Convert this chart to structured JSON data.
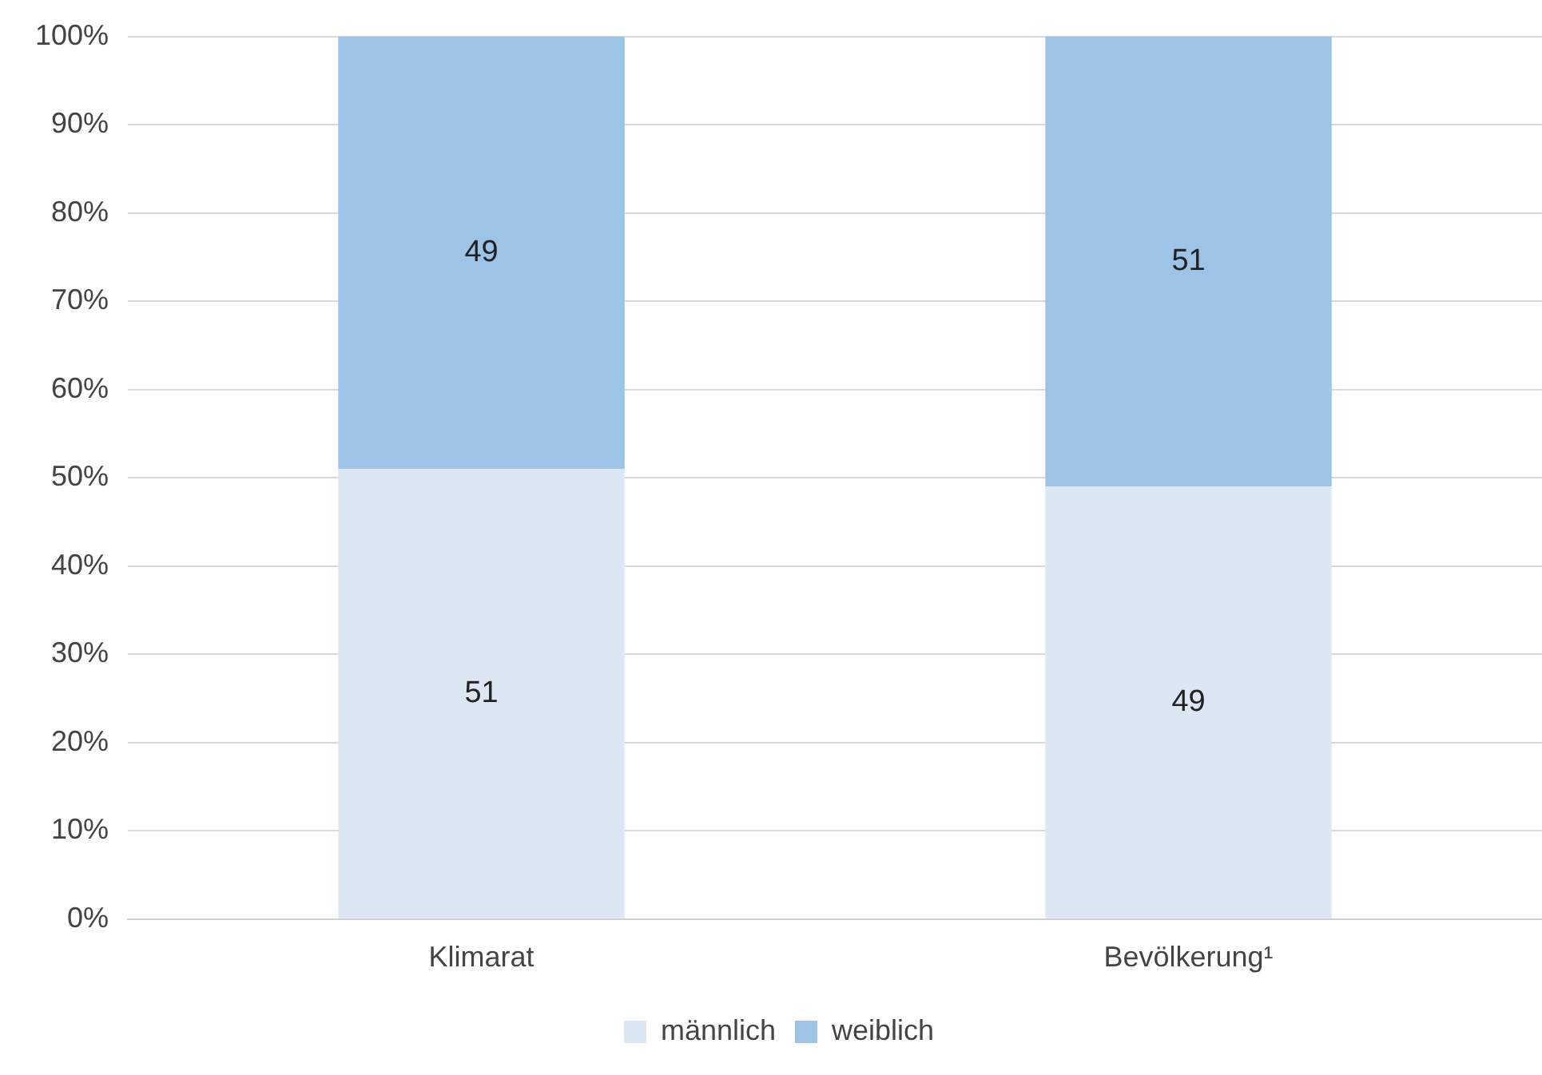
{
  "chart_data": {
    "type": "bar",
    "stacked": true,
    "categories": [
      "Klimarat",
      "Bevölkerung¹"
    ],
    "series": [
      {
        "name": "männlich",
        "color": "#dde7f4",
        "values": [
          51,
          49
        ]
      },
      {
        "name": "weiblich",
        "color": "#9dc3e6",
        "values": [
          49,
          51
        ]
      }
    ],
    "ylim": [
      0,
      100
    ],
    "yticks": [
      {
        "value": 0,
        "label": "0%"
      },
      {
        "value": 10,
        "label": "10%"
      },
      {
        "value": 20,
        "label": "20%"
      },
      {
        "value": 30,
        "label": "30%"
      },
      {
        "value": 40,
        "label": "40%"
      },
      {
        "value": 50,
        "label": "50%"
      },
      {
        "value": 60,
        "label": "60%"
      },
      {
        "value": 70,
        "label": "70%"
      },
      {
        "value": 80,
        "label": "80%"
      },
      {
        "value": 90,
        "label": "90%"
      },
      {
        "value": 100,
        "label": "100%"
      }
    ],
    "grid": "y",
    "legend": "bottom",
    "data_labels": true
  }
}
